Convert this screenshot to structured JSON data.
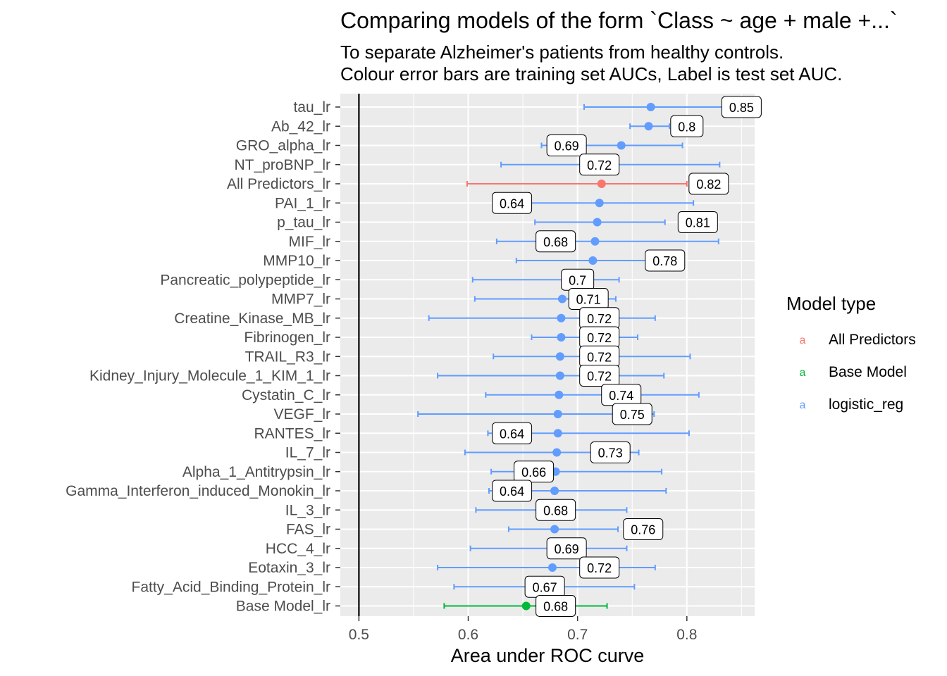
{
  "chart_data": {
    "type": "scatter",
    "title": "Comparing models of the form `Class ~ age + male +...`",
    "subtitle_lines": [
      "To separate Alzheimer's patients from healthy controls.",
      "Colour error bars are training set AUCs, Label is test set AUC."
    ],
    "xlabel": "Area under ROC curve",
    "ylabel": "",
    "xlim": [
      0.483,
      0.862
    ],
    "xticks": [
      0.5,
      0.6,
      0.7,
      0.8
    ],
    "reference_line_x": 0.5,
    "grid": true,
    "legend": {
      "title": "Model type",
      "placement": "right",
      "key_glyph": "a",
      "entries": [
        {
          "name": "All Predictors",
          "color": "#F8766D"
        },
        {
          "name": "Base Model",
          "color": "#00BA38"
        },
        {
          "name": "logistic_reg",
          "color": "#619CFF"
        }
      ]
    },
    "rows": [
      {
        "label": "tau_lr",
        "type": "logistic_reg",
        "auc": 0.767,
        "lower": 0.706,
        "upper": 0.837,
        "test_auc": "0.85"
      },
      {
        "label": "Ab_42_lr",
        "type": "logistic_reg",
        "auc": 0.765,
        "lower": 0.748,
        "upper": 0.784,
        "test_auc": "0.8"
      },
      {
        "label": "GRO_alpha_lr",
        "type": "logistic_reg",
        "auc": 0.74,
        "lower": 0.667,
        "upper": 0.796,
        "test_auc": "0.69"
      },
      {
        "label": "NT_proBNP_lr",
        "type": "logistic_reg",
        "auc": 0.727,
        "lower": 0.63,
        "upper": 0.83,
        "test_auc": "0.72"
      },
      {
        "label": "All Predictors_lr",
        "type": "All Predictors",
        "auc": 0.722,
        "lower": 0.599,
        "upper": 0.8,
        "test_auc": "0.82"
      },
      {
        "label": "PAI_1_lr",
        "type": "logistic_reg",
        "auc": 0.72,
        "lower": 0.64,
        "upper": 0.806,
        "test_auc": "0.64"
      },
      {
        "label": "p_tau_lr",
        "type": "logistic_reg",
        "auc": 0.718,
        "lower": 0.661,
        "upper": 0.78,
        "test_auc": "0.81"
      },
      {
        "label": "MIF_lr",
        "type": "logistic_reg",
        "auc": 0.716,
        "lower": 0.626,
        "upper": 0.829,
        "test_auc": "0.68"
      },
      {
        "label": "MMP10_lr",
        "type": "logistic_reg",
        "auc": 0.714,
        "lower": 0.644,
        "upper": 0.78,
        "test_auc": "0.78"
      },
      {
        "label": "Pancreatic_polypeptide_lr",
        "type": "logistic_reg",
        "auc": 0.698,
        "lower": 0.604,
        "upper": 0.738,
        "test_auc": "0.7"
      },
      {
        "label": "MMP7_lr",
        "type": "logistic_reg",
        "auc": 0.686,
        "lower": 0.606,
        "upper": 0.735,
        "test_auc": "0.71"
      },
      {
        "label": "Creatine_Kinase_MB_lr",
        "type": "logistic_reg",
        "auc": 0.685,
        "lower": 0.564,
        "upper": 0.771,
        "test_auc": "0.72"
      },
      {
        "label": "Fibrinogen_lr",
        "type": "logistic_reg",
        "auc": 0.685,
        "lower": 0.658,
        "upper": 0.755,
        "test_auc": "0.72"
      },
      {
        "label": "TRAIL_R3_lr",
        "type": "logistic_reg",
        "auc": 0.684,
        "lower": 0.623,
        "upper": 0.803,
        "test_auc": "0.72"
      },
      {
        "label": "Kidney_Injury_Molecule_1_KIM_1_lr",
        "type": "logistic_reg",
        "auc": 0.684,
        "lower": 0.572,
        "upper": 0.779,
        "test_auc": "0.72"
      },
      {
        "label": "Cystatin_C_lr",
        "type": "logistic_reg",
        "auc": 0.683,
        "lower": 0.616,
        "upper": 0.811,
        "test_auc": "0.74"
      },
      {
        "label": "VEGF_lr",
        "type": "logistic_reg",
        "auc": 0.682,
        "lower": 0.554,
        "upper": 0.77,
        "test_auc": "0.75"
      },
      {
        "label": "RANTES_lr",
        "type": "logistic_reg",
        "auc": 0.682,
        "lower": 0.618,
        "upper": 0.802,
        "test_auc": "0.64"
      },
      {
        "label": "IL_7_lr",
        "type": "logistic_reg",
        "auc": 0.681,
        "lower": 0.597,
        "upper": 0.756,
        "test_auc": "0.73"
      },
      {
        "label": "Alpha_1_Antitrypsin_lr",
        "type": "logistic_reg",
        "auc": 0.68,
        "lower": 0.621,
        "upper": 0.777,
        "test_auc": "0.66"
      },
      {
        "label": "Gamma_Interferon_induced_Monokin_lr",
        "type": "logistic_reg",
        "auc": 0.679,
        "lower": 0.619,
        "upper": 0.781,
        "test_auc": "0.64"
      },
      {
        "label": "IL_3_lr",
        "type": "logistic_reg",
        "auc": 0.678,
        "lower": 0.607,
        "upper": 0.745,
        "test_auc": "0.68"
      },
      {
        "label": "FAS_lr",
        "type": "logistic_reg",
        "auc": 0.679,
        "lower": 0.637,
        "upper": 0.737,
        "test_auc": "0.76"
      },
      {
        "label": "HCC_4_lr",
        "type": "logistic_reg",
        "auc": 0.678,
        "lower": 0.602,
        "upper": 0.745,
        "test_auc": "0.69"
      },
      {
        "label": "Eotaxin_3_lr",
        "type": "logistic_reg",
        "auc": 0.677,
        "lower": 0.572,
        "upper": 0.771,
        "test_auc": "0.72"
      },
      {
        "label": "Fatty_Acid_Binding_Protein_lr",
        "type": "logistic_reg",
        "auc": 0.674,
        "lower": 0.587,
        "upper": 0.752,
        "test_auc": "0.67"
      },
      {
        "label": "Base Model_lr",
        "type": "Base Model",
        "auc": 0.653,
        "lower": 0.578,
        "upper": 0.727,
        "test_auc": "0.68"
      }
    ]
  }
}
